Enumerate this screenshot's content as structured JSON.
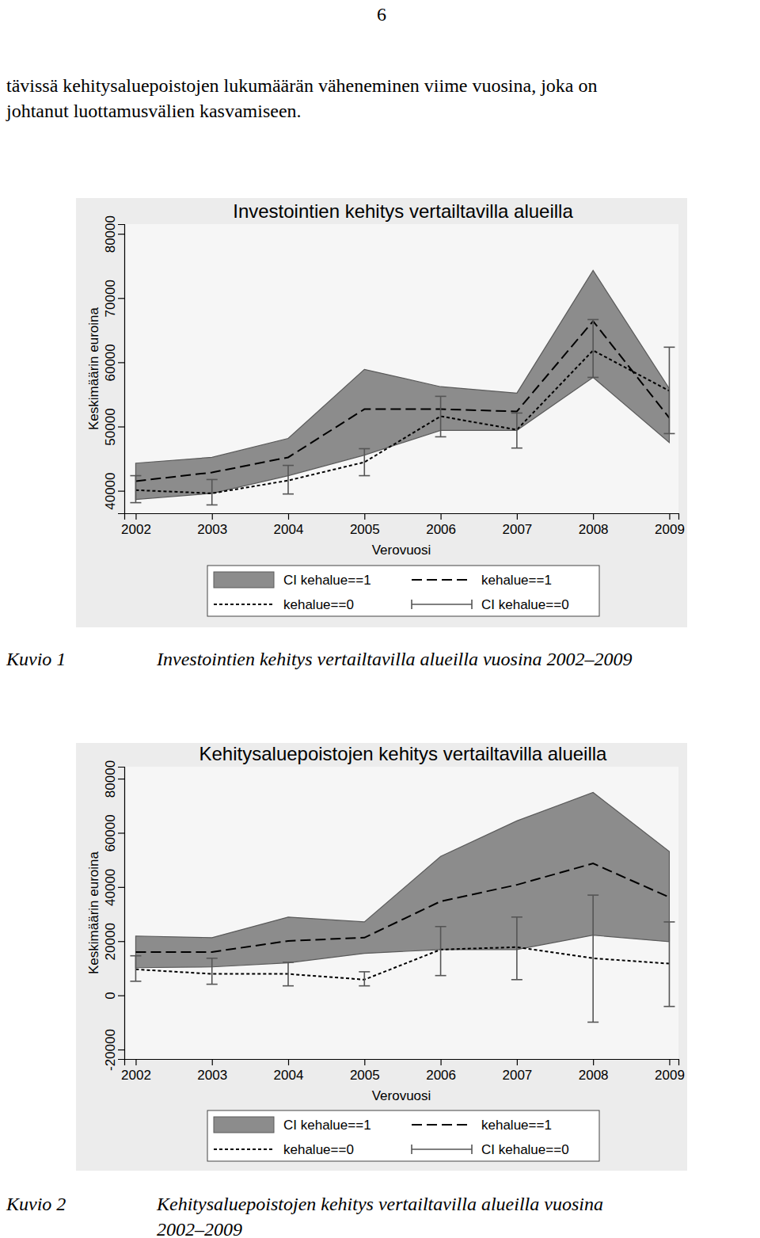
{
  "page": {
    "number": "6",
    "paragraph": [
      "tävissä kehitysaluepoistojen lukumäärän väheneminen viime vuosina, joka on",
      "johtanut luottamusvälien kasvamiseen."
    ]
  },
  "figures": [
    {
      "label": "Kuvio 1",
      "caption": [
        "Investointien kehitys vertailtavilla alueilla vuosina 2002–2009"
      ]
    },
    {
      "label": "Kuvio 2",
      "caption": [
        "Kehitysaluepoistojen kehitys vertailtavilla alueilla vuosina",
        "2002–2009"
      ]
    }
  ],
  "chart_data": [
    {
      "type": "line",
      "title": "Investointien kehitys vertailtavilla alueilla",
      "x_label": "Verovuosi",
      "y_label": "Keskimäärin euroina",
      "x": [
        2002,
        2003,
        2004,
        2005,
        2006,
        2007,
        2008,
        2009
      ],
      "xlim": [
        2001.85,
        2009.12
      ],
      "xticks": [
        2002,
        2003,
        2004,
        2005,
        2006,
        2007,
        2008,
        2009
      ],
      "ylim": [
        36500,
        81500
      ],
      "yticks": [
        40000,
        50000,
        60000,
        70000,
        80000
      ],
      "legend": "bottom",
      "series": [
        {
          "name": "CI kehalue==1",
          "type": "area",
          "color": "#8c8c8c",
          "lower": [
            38650,
            39600,
            42350,
            45550,
            49400,
            49400,
            57650,
            47500
          ],
          "upper": [
            44300,
            45200,
            48150,
            58900,
            56200,
            55200,
            74300,
            55900
          ]
        },
        {
          "name": "kehalue==1",
          "type": "line",
          "color": "#000000",
          "line_style": "longdash",
          "values": [
            41500,
            42850,
            45200,
            52700,
            52700,
            52350,
            66400,
            51350
          ]
        },
        {
          "name": "kehalue==0",
          "type": "line",
          "color": "#000000",
          "line_style": "shortdash",
          "values": [
            40100,
            39600,
            41600,
            44450,
            51600,
            49500,
            61850,
            55550
          ]
        },
        {
          "name": "CI kehalue==0",
          "type": "errorbar",
          "color": "#555555",
          "lower": [
            38150,
            37800,
            39500,
            42350,
            48400,
            46650,
            57650,
            48900
          ],
          "upper": [
            42350,
            41750,
            43950,
            46550,
            54700,
            52100,
            66650,
            62350
          ]
        }
      ]
    },
    {
      "type": "line",
      "title": "Kehitysaluepoistojen kehitys vertailtavilla alueilla",
      "x_label": "Verovuosi",
      "y_label": "Keskimäärin euroina",
      "x": [
        2002,
        2003,
        2004,
        2005,
        2006,
        2007,
        2008,
        2009
      ],
      "xlim": [
        2001.85,
        2009.12
      ],
      "xticks": [
        2002,
        2003,
        2004,
        2005,
        2006,
        2007,
        2008,
        2009
      ],
      "ylim": [
        -23500,
        84400
      ],
      "yticks": [
        -20000,
        0,
        20000,
        40000,
        60000,
        80000
      ],
      "legend": "bottom",
      "series": [
        {
          "name": "CI kehalue==1",
          "type": "area",
          "color": "#8c8c8c",
          "lower": [
            10200,
            10500,
            12000,
            15500,
            16900,
            16900,
            22200,
            19800
          ],
          "upper": [
            21900,
            21300,
            28900,
            27100,
            51300,
            64400,
            74900,
            53100
          ]
        },
        {
          "name": "kehalue==1",
          "type": "line",
          "color": "#000000",
          "line_style": "longdash",
          "values": [
            16000,
            16000,
            20100,
            21300,
            34700,
            40800,
            48700,
            36200
          ]
        },
        {
          "name": "kehalue==0",
          "type": "line",
          "color": "#000000",
          "line_style": "shortdash",
          "values": [
            9600,
            7900,
            7900,
            5800,
            16900,
            17800,
            13700,
            11700
          ]
        },
        {
          "name": "CI kehalue==0",
          "type": "errorbar",
          "color": "#555555",
          "lower": [
            5200,
            4100,
            3500,
            3500,
            7300,
            5800,
            -9900,
            -4100
          ],
          "upper": [
            14600,
            13700,
            12200,
            8700,
            25400,
            28900,
            37000,
            27100
          ]
        }
      ]
    }
  ]
}
